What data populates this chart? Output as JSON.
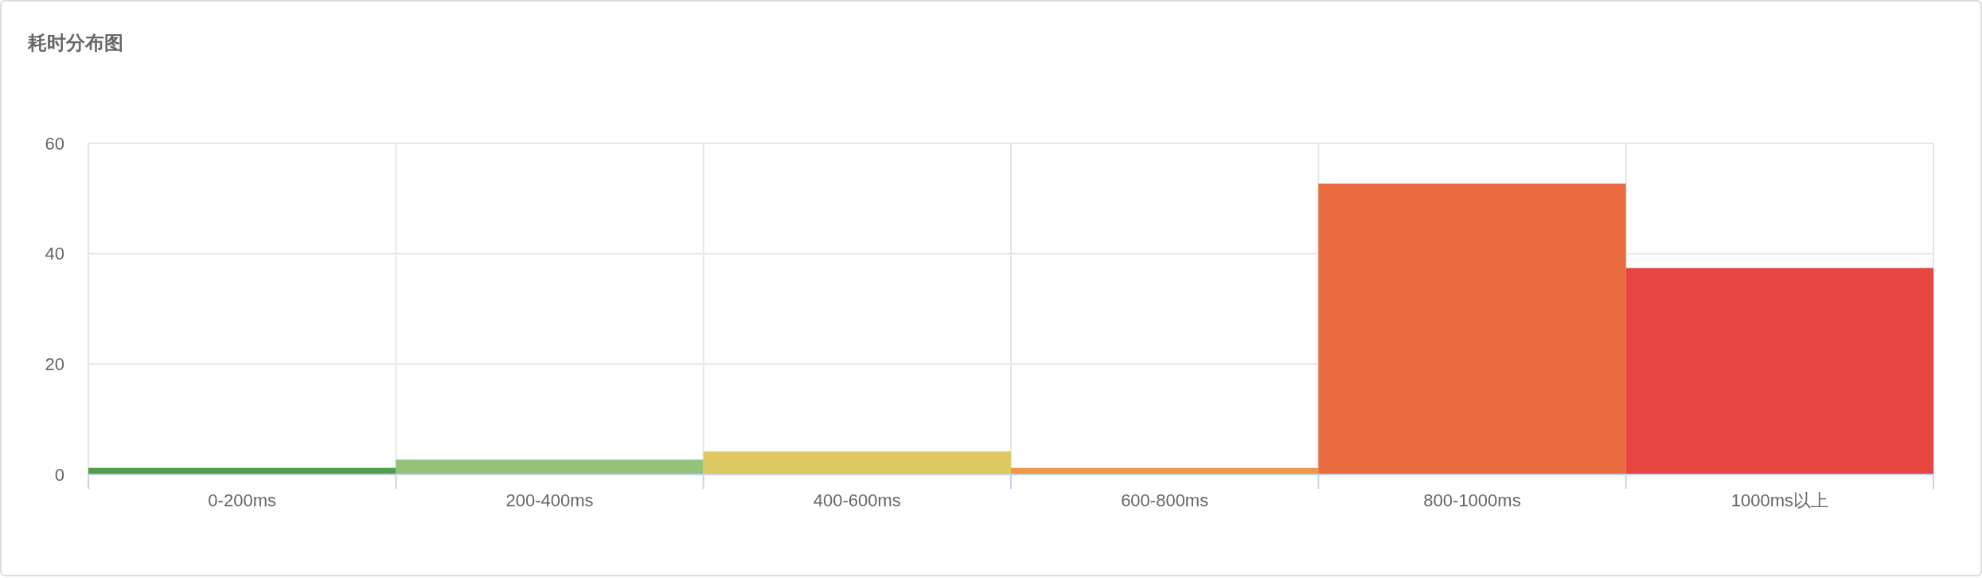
{
  "chart_data": {
    "type": "bar",
    "title": "耗时分布图",
    "categories": [
      "0-200ms",
      "200-400ms",
      "400-600ms",
      "600-800ms",
      "800-1000ms",
      "1000ms以上"
    ],
    "values": [
      1.2,
      2.7,
      4.2,
      1.2,
      52.7,
      37.4
    ],
    "colors": [
      "#4f9f4a",
      "#93c37b",
      "#dfc963",
      "#f0984a",
      "#e96b3f",
      "#e64541"
    ],
    "ylim": [
      0,
      60
    ],
    "yticks": [
      0,
      20,
      40,
      60
    ],
    "grid": true
  }
}
